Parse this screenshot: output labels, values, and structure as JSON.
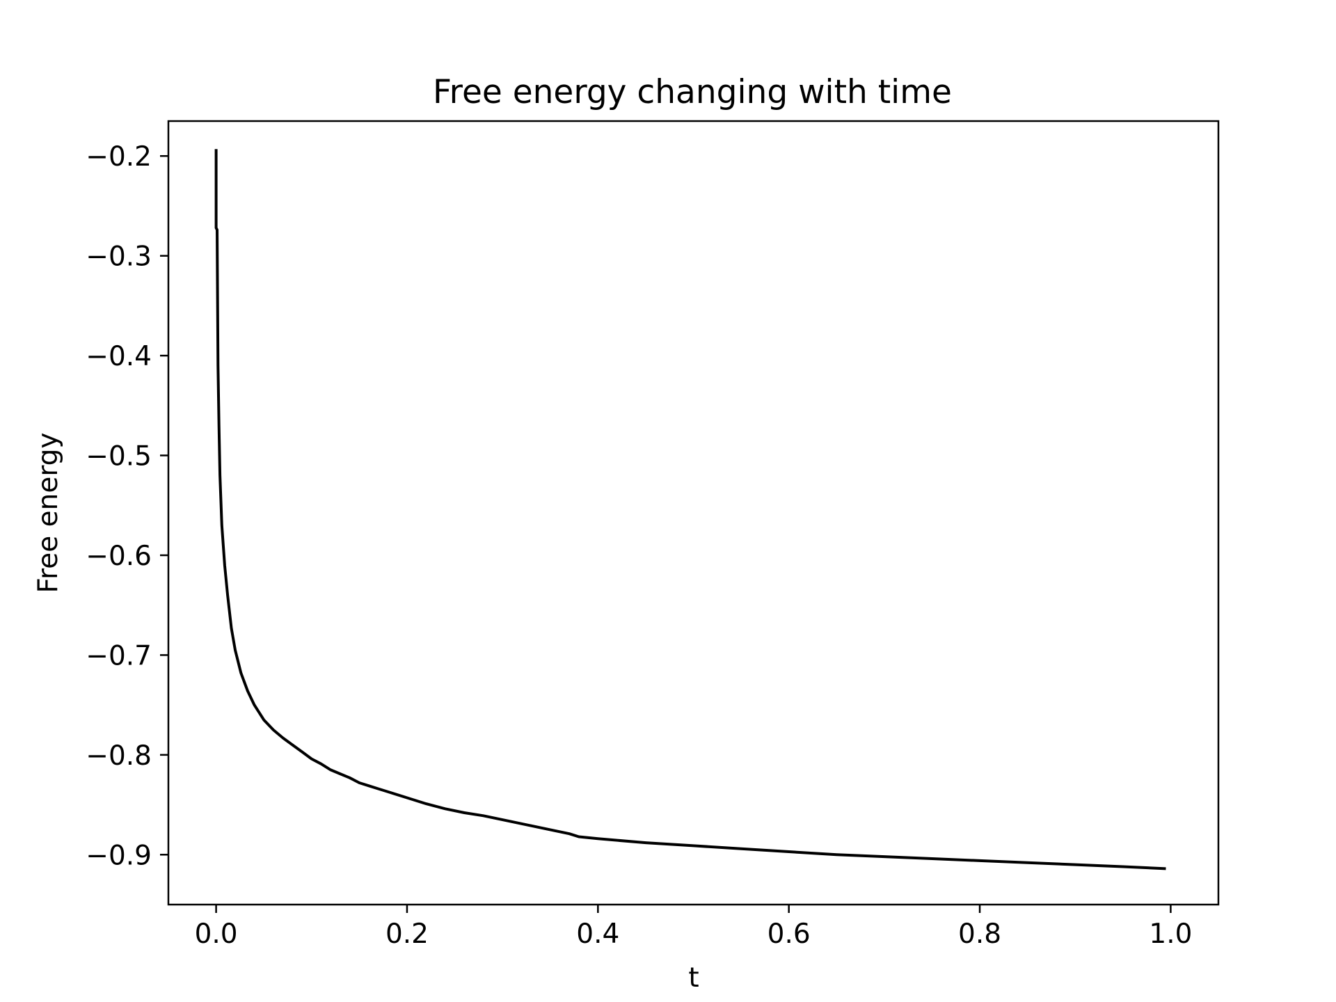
{
  "chart_data": {
    "type": "line",
    "title": "Free energy changing with time",
    "xlabel": "t",
    "ylabel": "Free energy",
    "xlim": [
      -0.05,
      1.05
    ],
    "ylim": [
      -0.95,
      -0.165
    ],
    "xticks": [
      0.0,
      0.2,
      0.4,
      0.6,
      0.8,
      1.0
    ],
    "xtick_labels": [
      "0.0",
      "0.2",
      "0.4",
      "0.6",
      "0.8",
      "1.0"
    ],
    "yticks": [
      -0.2,
      -0.3,
      -0.4,
      -0.5,
      -0.6,
      -0.7,
      -0.8,
      -0.9
    ],
    "ytick_labels": [
      "−0.2",
      "−0.3",
      "−0.4",
      "−0.5",
      "−0.6",
      "−0.7",
      "−0.8",
      "−0.9"
    ],
    "grid": false,
    "line_color": "#000000",
    "series": [
      {
        "x": [
          0.0,
          0.0,
          0.001,
          0.002,
          0.003,
          0.004,
          0.006,
          0.009,
          0.012,
          0.016,
          0.02,
          0.026,
          0.033,
          0.04,
          0.05,
          0.06,
          0.07,
          0.08,
          0.09,
          0.1,
          0.11,
          0.12,
          0.13,
          0.14,
          0.15,
          0.16,
          0.17,
          0.18,
          0.2,
          0.22,
          0.24,
          0.26,
          0.28,
          0.29,
          0.31,
          0.33,
          0.35,
          0.37,
          0.38,
          0.4,
          0.45,
          0.5,
          0.55,
          0.6,
          0.65,
          0.7,
          0.75,
          0.8,
          0.85,
          0.9,
          0.95,
          0.995
        ],
        "y": [
          -0.193,
          -0.272,
          -0.274,
          -0.41,
          -0.47,
          -0.52,
          -0.57,
          -0.61,
          -0.64,
          -0.673,
          -0.695,
          -0.718,
          -0.736,
          -0.75,
          -0.765,
          -0.775,
          -0.783,
          -0.79,
          -0.797,
          -0.804,
          -0.809,
          -0.815,
          -0.819,
          -0.823,
          -0.828,
          -0.831,
          -0.834,
          -0.837,
          -0.843,
          -0.849,
          -0.854,
          -0.858,
          -0.861,
          -0.863,
          -0.867,
          -0.871,
          -0.875,
          -0.879,
          -0.882,
          -0.884,
          -0.888,
          -0.891,
          -0.894,
          -0.897,
          -0.9,
          -0.902,
          -0.904,
          -0.906,
          -0.908,
          -0.91,
          -0.912,
          -0.914
        ]
      }
    ]
  }
}
